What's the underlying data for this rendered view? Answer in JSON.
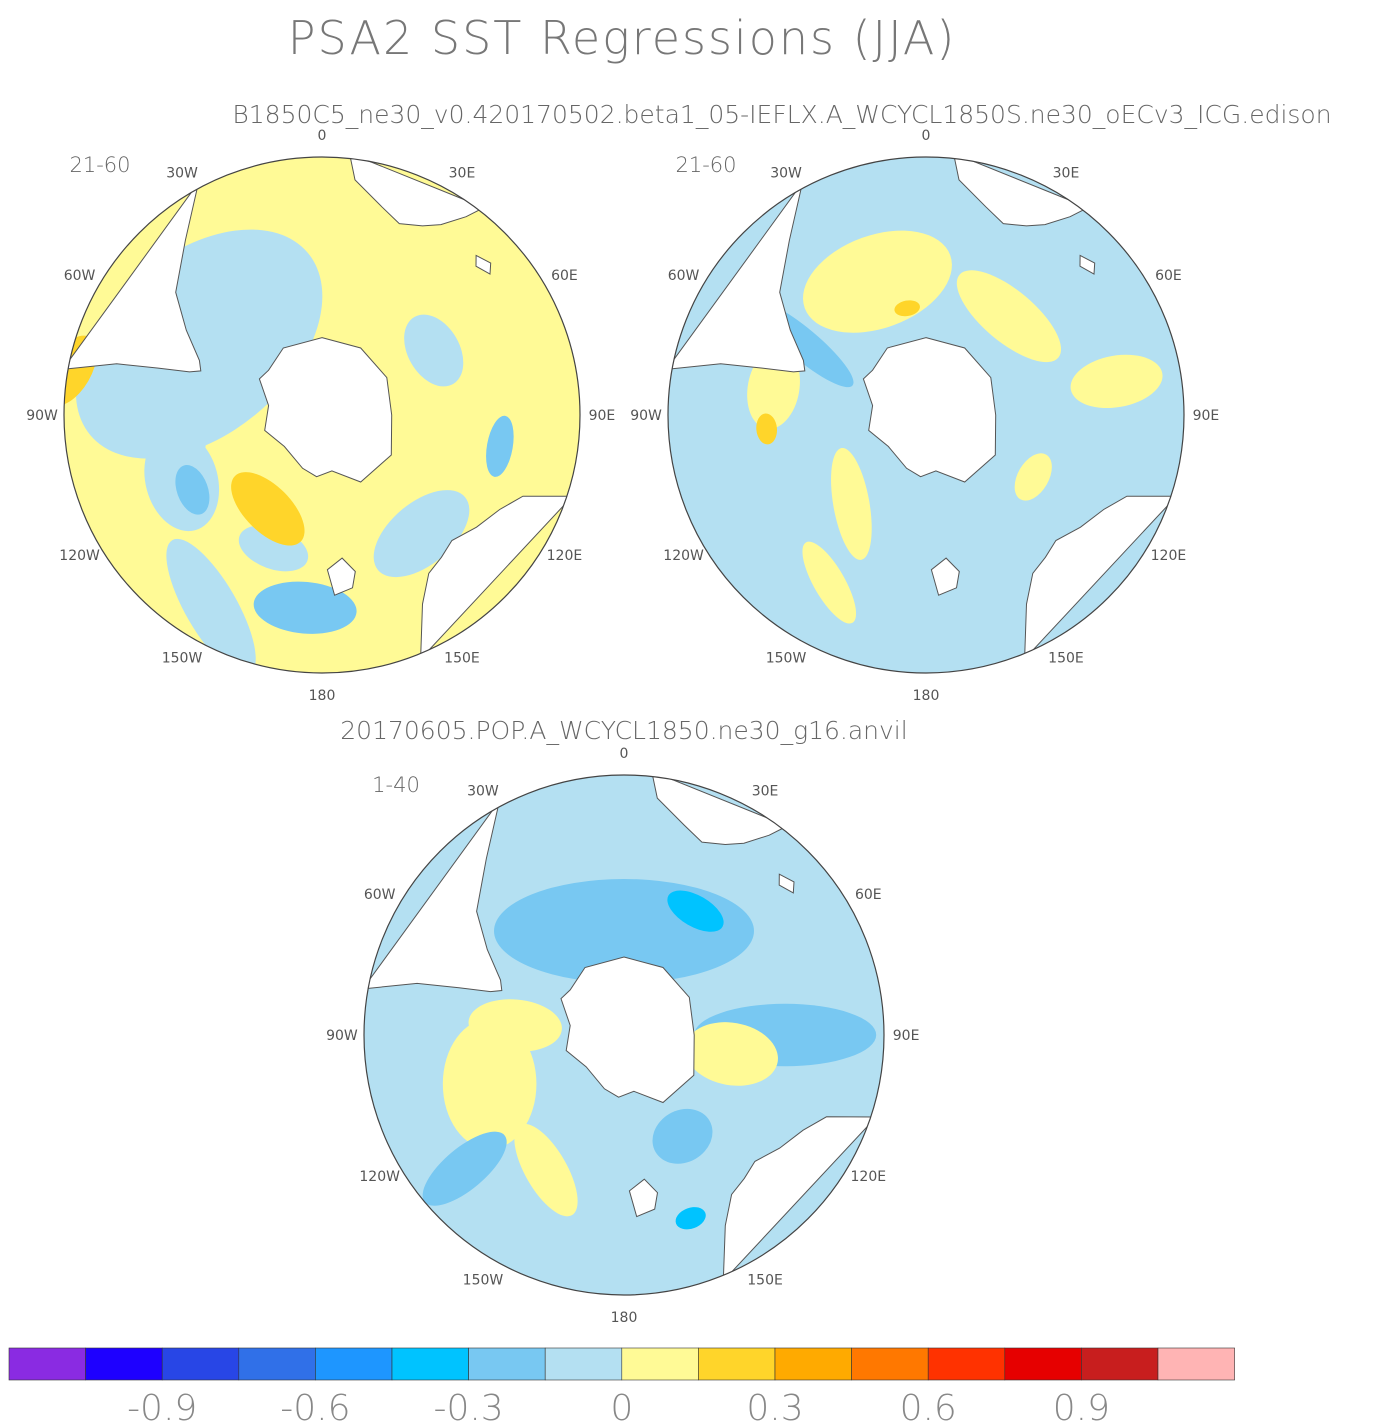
{
  "chart_data": {
    "type": "heatmap",
    "title": "PSA2 SST Regressions (JJA)",
    "projection": "south-polar-stereographic",
    "subtitles": [
      "B1850C5_ne30_v0.420170502.beta1_05-IEFLX.A_WCYCL1850S.ne30_oECv3_ICG.edison",
      "20170605.POP.A_WCYCL1850.ne30_g16.anvil"
    ],
    "longitude_labels": [
      "0",
      "30E",
      "60E",
      "90E",
      "120E",
      "150E",
      "180",
      "150W",
      "120W",
      "90W",
      "60W",
      "30W"
    ],
    "panels": [
      {
        "period": "21-60",
        "dataset_index": 0,
        "dominant": "positive (0 to 0.15) over most of the Atlantic and Indian sectors; 0.15 to 0.3 off Chile and south of New Zealand; -0.15 to -0.3 in the central South Pacific and south of Australia"
      },
      {
        "period": "21-60",
        "dataset_index": 0,
        "dominant": "mixed 0 to 0.15 and -0.15 to 0; scattered 0.15 to 0.3 patches"
      },
      {
        "period": "1-40",
        "dataset_index": 1,
        "dominant": "mostly -0.15 to 0; -0.15 to -0.3 across the South Atlantic and Indian sectors; 0 to 0.15 in the South Pacific"
      }
    ],
    "colorbar": {
      "tick_labels": [
        "-0.9",
        "-0.6",
        "-0.3",
        "0",
        "0.3",
        "0.6",
        "0.9"
      ],
      "colors": [
        "#8a2be2",
        "#1e00ff",
        "#2846e6",
        "#3070e8",
        "#1e96ff",
        "#00c3ff",
        "#78c8f2",
        "#b4e0f2",
        "#fffa96",
        "#ffd52a",
        "#ffaa00",
        "#ff7800",
        "#ff3200",
        "#e60000",
        "#c81e1e",
        "#ffb4b4"
      ]
    }
  }
}
